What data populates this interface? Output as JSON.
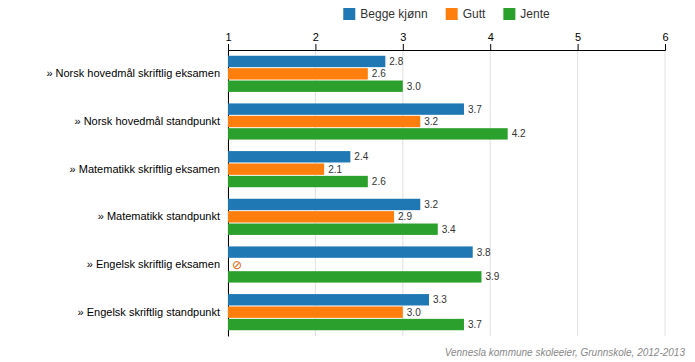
{
  "chart_data": {
    "type": "bar",
    "orientation": "horizontal",
    "categories": [
      "» Norsk hovedmål skriftlig eksamen",
      "» Norsk hovedmål standpunkt",
      "» Matematikk skriftlig eksamen",
      "» Matematikk standpunkt",
      "» Engelsk skriftlig eksamen",
      "» Engelsk skriftlig standpunkt"
    ],
    "series": [
      {
        "name": "Begge kjønn",
        "values": [
          2.8,
          3.7,
          2.4,
          3.2,
          3.8,
          3.3
        ],
        "value_labels": [
          "2.8",
          "3.7",
          "2.4",
          "3.2",
          "3.8",
          "3.3"
        ]
      },
      {
        "name": "Gutt",
        "values": [
          2.6,
          3.2,
          2.1,
          2.9,
          null,
          3.0
        ],
        "value_labels": [
          "2.6",
          "3.2",
          "2.1",
          "2.9",
          "⊘",
          "3.0"
        ]
      },
      {
        "name": "Jente",
        "values": [
          3.0,
          4.2,
          2.6,
          3.4,
          3.9,
          3.7
        ],
        "value_labels": [
          "3.0",
          "4.2",
          "2.6",
          "3.4",
          "3.9",
          "3.7"
        ]
      }
    ],
    "xlim": [
      1,
      6
    ],
    "xticks": [
      1,
      2,
      3,
      4,
      5,
      6
    ],
    "grid": true,
    "legend": "top",
    "data_labels": true,
    "annotations": [
      "Vennesla kommune skoleeier, Grunnskole, 2012-2013"
    ]
  }
}
